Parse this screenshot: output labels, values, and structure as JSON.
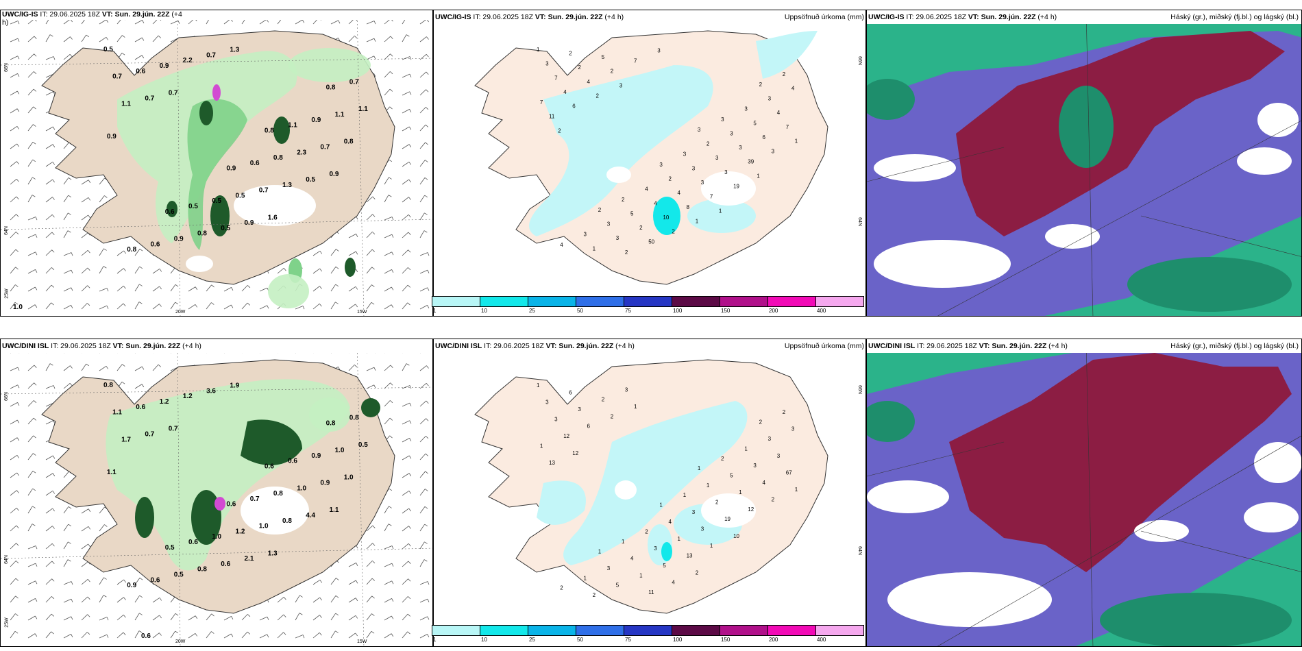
{
  "rows": [
    {
      "wind_panel": {
        "title_model": "UWC/IG-IS",
        "title_rest": " IT: 29.06.2025 18Z ",
        "title_vt": "VT: Sun. 29.jún. 22Z",
        "title_lead": " (+4",
        "title_lead2": "h)",
        "lat_top": "66N",
        "lat_mid": "64N",
        "lon_left": "25W",
        "lon_mid": "20W",
        "lon_right": "15W",
        "corner_label": "1.0",
        "labels": [
          "0.5",
          "0.8",
          "0.6",
          "0.8",
          "0.9",
          "0.8",
          "1.1",
          "0.5",
          "0.7",
          "0.6",
          "0.6",
          "0.9",
          "0.5",
          "0.7",
          "0.8",
          "0.9",
          "1.1",
          "0.5",
          "0.6",
          "2.3",
          "0.8",
          "1.1",
          "0.7",
          "0.9",
          "0.7",
          "0.5",
          "1.1",
          "1.3",
          "2.2",
          "0.8",
          "0.9",
          "0.7",
          "0.5",
          "0.7",
          "0.9",
          "1.6",
          "0.7",
          "0.9",
          "1.3"
        ]
      },
      "precip_panel": {
        "title_model": "UWC/IG-IS",
        "title_rest": " IT: 29.06.2025 18Z ",
        "title_vt": "VT: Sun. 29.jún. 22Z",
        "title_lead": " (+4 h)",
        "right_title": "Uppsöfnuð úrkoma (mm)",
        "lat_top": "66N",
        "lat_mid": "64N",
        "labels": [
          "1",
          "3",
          "2",
          "2",
          "3",
          "4",
          "3",
          "2",
          "2",
          "3",
          "3",
          "3",
          "4",
          "3",
          "2",
          "3",
          "3",
          "2",
          "2",
          "3",
          "5",
          "4",
          "3",
          "1",
          "5",
          "4",
          "7",
          "3",
          "3",
          "4",
          "4",
          "2",
          "3",
          "2",
          "7",
          "3",
          "5",
          "6",
          "10",
          "4",
          "3",
          "2",
          "7",
          "8",
          "4",
          "39",
          "50",
          "11",
          "7",
          "2",
          "3",
          "2",
          "6",
          "19",
          "7",
          "1",
          "1",
          "2",
          "1",
          "3",
          "2",
          "1",
          "3"
        ]
      },
      "cloud_panel": {
        "title_model": "UWC/IG-IS",
        "title_rest": " IT: 29.06.2025 18Z ",
        "title_vt": "VT: Sun. 29.jún. 22Z",
        "title_lead": " (+4 h)",
        "right_title": "Háský (gr.), miðský (fj.bl.) og lágský (bl.)"
      }
    },
    {
      "wind_panel": {
        "title_model": "UWC/DINI ISL",
        "title_rest": " IT: 29.06.2025 18Z ",
        "title_vt": "VT: Sun. 29.jún. 22Z",
        "title_lead": " (+4 h)",
        "title_lead2": "",
        "lat_top": "66N",
        "lat_mid": "64N",
        "lon_left": "25W",
        "lon_mid": "20W",
        "lon_right": "15W",
        "corner_label": "0.6",
        "labels": [
          "0.8",
          "0.6",
          "0.5",
          "0.8",
          "0.6",
          "0.9",
          "0.6",
          "0.6",
          "0.8",
          "0.7",
          "0.6",
          "0.9",
          "1.0",
          "1.1",
          "0.8",
          "0.5",
          "1.0",
          "1.2",
          "0.6",
          "1.0",
          "0.8",
          "0.5",
          "1.0",
          "1.2",
          "0.9",
          "0.6",
          "1.7",
          "0.8",
          "1.2",
          "1.0",
          "2.1",
          "0.7",
          "4.4",
          "3.6",
          "1.1",
          "1.3",
          "0.7",
          "1.1",
          "1.9"
        ]
      },
      "precip_panel": {
        "title_model": "UWC/DINI ISL",
        "title_rest": " IT: 29.06.2025 18Z ",
        "title_vt": "VT: Sun. 29.jún. 22Z",
        "title_lead": " (+4 h)",
        "right_title": "Uppsöfnuð úrkoma (mm)",
        "lat_top": "66N",
        "lat_mid": "64N",
        "labels": [
          "1",
          "1",
          "1",
          "2",
          "1",
          "2",
          "2",
          "1",
          "2",
          "1",
          "1",
          "1",
          "2",
          "3",
          "1",
          "3",
          "3",
          "4",
          "6",
          "5",
          "4",
          "3",
          "3",
          "2",
          "3",
          "3",
          "3",
          "2",
          "5",
          "3",
          "1",
          "3",
          "1",
          "1",
          "1",
          "3",
          "2",
          "4",
          "5",
          "12",
          "19",
          "3",
          "67",
          "13",
          "6",
          "12",
          "11",
          "13",
          "1",
          "2",
          "2",
          "4",
          "12",
          "10",
          "1",
          "1",
          "2"
        ]
      },
      "cloud_panel": {
        "title_model": "UWC/DINI ISL",
        "title_rest": " IT: 29.06.2025 18Z ",
        "title_vt": "VT: Sun. 29.jún. 22Z",
        "title_lead": " (+4 h)",
        "right_title": "Háský (gr.), miðský (fj.bl.) og lágský (bl.)"
      }
    }
  ],
  "colorbar": {
    "labels": [
      "1",
      "10",
      "25",
      "50",
      "75",
      "100",
      "150",
      "200",
      "400"
    ],
    "colors": [
      "#b8f6f6",
      "#13e8ea",
      "#0ab4e8",
      "#2f6fe8",
      "#2636c4",
      "#5c0a46",
      "#b0108a",
      "#f20ab6",
      "#f5a8ee"
    ]
  },
  "colors": {
    "land": "#e9d8c6",
    "land_precip": "#fbebe0",
    "precip_light": "#c3f6f8",
    "green_light": "#c4f0c2",
    "green_mid": "#7fd28a",
    "green_dark": "#1e5a2a",
    "cloud_high": "#8c1d43",
    "cloud_mid": "#6a63c8",
    "cloud_low": "#2bb38a"
  }
}
